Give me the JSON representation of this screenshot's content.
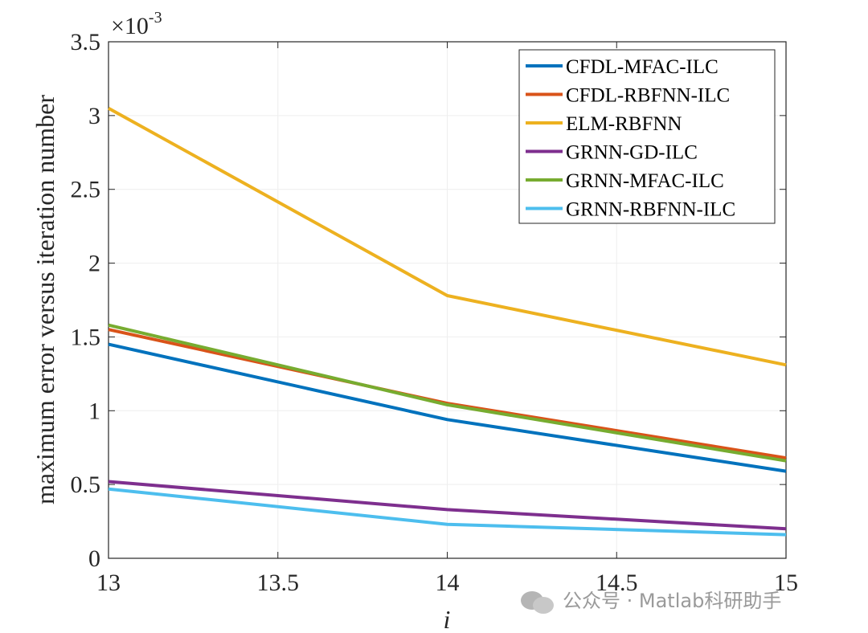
{
  "chart_data": {
    "type": "line",
    "title": "",
    "xlabel": "i",
    "ylabel": "maximum error versus iteration number",
    "y_exponent": "-3",
    "y_exponent_prefix": "×10",
    "xlim": [
      13,
      15
    ],
    "ylim": [
      0,
      3.5
    ],
    "x_ticks": [
      13,
      13.5,
      14,
      14.5,
      15
    ],
    "x_tick_labels": [
      "13",
      "13.5",
      "14",
      "14.5",
      "15"
    ],
    "y_ticks": [
      0,
      0.5,
      1,
      1.5,
      2,
      2.5,
      3,
      3.5
    ],
    "y_tick_labels": [
      "0",
      "0.5",
      "1",
      "1.5",
      "2",
      "2.5",
      "3",
      "3.5"
    ],
    "grid": true,
    "legend_position": "top-right",
    "x": [
      13,
      14,
      15
    ],
    "series": [
      {
        "name": "CFDL-MFAC-ILC",
        "color": "#0072BD",
        "values": [
          1.45,
          0.94,
          0.59
        ]
      },
      {
        "name": "CFDL-RBFNN-ILC",
        "color": "#D95319",
        "values": [
          1.55,
          1.05,
          0.68
        ]
      },
      {
        "name": "ELM-RBFNN",
        "color": "#EDB120",
        "values": [
          3.05,
          1.78,
          1.31
        ]
      },
      {
        "name": "GRNN-GD-ILC",
        "color": "#7E2F8E",
        "values": [
          0.52,
          0.33,
          0.2
        ]
      },
      {
        "name": "GRNN-MFAC-ILC",
        "color": "#77AC30",
        "values": [
          1.58,
          1.04,
          0.66
        ]
      },
      {
        "name": "GRNN-RBFNN-ILC",
        "color": "#4DBEEE",
        "values": [
          0.47,
          0.23,
          0.16
        ]
      }
    ]
  },
  "watermark": {
    "text": "公众号 · Matlab科研助手",
    "icon": "wechat-icon"
  }
}
